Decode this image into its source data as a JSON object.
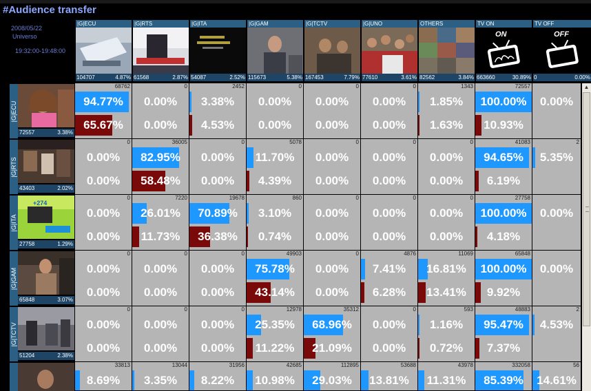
{
  "title": "#Audience transfer",
  "info": {
    "date": "2008/05/22",
    "universe": "Universo",
    "time": "19:32:00-19:48:00"
  },
  "channels": [
    {
      "name": "|G|ECU",
      "count": "104707",
      "pct": "4.87%"
    },
    {
      "name": "|G|RTS",
      "count": "61568",
      "pct": "2.87%"
    },
    {
      "name": "|G|ITA",
      "count": "54087",
      "pct": "2.52%"
    },
    {
      "name": "|G|GAM",
      "count": "115673",
      "pct": "5.38%"
    },
    {
      "name": "|G|TCTV",
      "count": "167453",
      "pct": "7.79%"
    },
    {
      "name": "|G|UNO",
      "count": "77610",
      "pct": "3.61%"
    },
    {
      "name": "OTHERS",
      "count": "82562",
      "pct": "3.84%"
    },
    {
      "name": "TV ON",
      "count": "663660",
      "pct": "30.89%"
    },
    {
      "name": "TV OFF",
      "count": "0",
      "pct": "0.00%"
    }
  ],
  "tv_on_icon_text": "ON",
  "tv_off_icon_text": "OFF",
  "rows": [
    {
      "name": "|G|ECU",
      "count": "72557",
      "pct": "3.38%",
      "cells": [
        {
          "cnt": "68762",
          "top": "94.77%",
          "bot": "65.67%",
          "t": 0.9477,
          "b": 0.6567
        },
        {
          "cnt": "0",
          "top": "0.00%",
          "bot": "0.00%",
          "t": 0,
          "b": 0
        },
        {
          "cnt": "2452",
          "top": "3.38%",
          "bot": "4.53%",
          "t": 0.0338,
          "b": 0.0453
        },
        {
          "cnt": "0",
          "top": "0.00%",
          "bot": "0.00%",
          "t": 0,
          "b": 0
        },
        {
          "cnt": "0",
          "top": "0.00%",
          "bot": "0.00%",
          "t": 0,
          "b": 0
        },
        {
          "cnt": "0",
          "top": "0.00%",
          "bot": "0.00%",
          "t": 0,
          "b": 0
        },
        {
          "cnt": "1343",
          "top": "1.85%",
          "bot": "1.63%",
          "t": 0.0185,
          "b": 0.0163
        },
        {
          "cnt": "72557",
          "top": "100.00%",
          "bot": "10.93%",
          "t": 1,
          "b": 0.1093
        },
        {
          "cnt": "",
          "top": "0.00%",
          "bot": "",
          "t": 0,
          "b": 0
        }
      ]
    },
    {
      "name": "|G|RTS",
      "count": "43403",
      "pct": "2.02%",
      "cells": [
        {
          "cnt": "0",
          "top": "0.00%",
          "bot": "0.00%",
          "t": 0,
          "b": 0
        },
        {
          "cnt": "36005",
          "top": "82.95%",
          "bot": "58.48%",
          "t": 0.8295,
          "b": 0.5848
        },
        {
          "cnt": "0",
          "top": "0.00%",
          "bot": "0.00%",
          "t": 0,
          "b": 0
        },
        {
          "cnt": "5078",
          "top": "11.70%",
          "bot": "4.39%",
          "t": 0.117,
          "b": 0.0439
        },
        {
          "cnt": "0",
          "top": "0.00%",
          "bot": "0.00%",
          "t": 0,
          "b": 0
        },
        {
          "cnt": "0",
          "top": "0.00%",
          "bot": "0.00%",
          "t": 0,
          "b": 0
        },
        {
          "cnt": "0",
          "top": "0.00%",
          "bot": "0.00%",
          "t": 0,
          "b": 0
        },
        {
          "cnt": "41083",
          "top": "94.65%",
          "bot": "6.19%",
          "t": 0.9465,
          "b": 0.0619
        },
        {
          "cnt": "2",
          "top": "5.35%",
          "bot": "",
          "t": 0.0535,
          "b": 0
        }
      ]
    },
    {
      "name": "|G|ITA",
      "count": "27758",
      "pct": "1.29%",
      "cells": [
        {
          "cnt": "0",
          "top": "0.00%",
          "bot": "0.00%",
          "t": 0,
          "b": 0
        },
        {
          "cnt": "7220",
          "top": "26.01%",
          "bot": "11.73%",
          "t": 0.2601,
          "b": 0.1173
        },
        {
          "cnt": "19678",
          "top": "70.89%",
          "bot": "36.38%",
          "t": 0.7089,
          "b": 0.3638
        },
        {
          "cnt": "860",
          "top": "3.10%",
          "bot": "0.74%",
          "t": 0.031,
          "b": 0.0074
        },
        {
          "cnt": "0",
          "top": "0.00%",
          "bot": "0.00%",
          "t": 0,
          "b": 0
        },
        {
          "cnt": "0",
          "top": "0.00%",
          "bot": "0.00%",
          "t": 0,
          "b": 0
        },
        {
          "cnt": "0",
          "top": "0.00%",
          "bot": "0.00%",
          "t": 0,
          "b": 0
        },
        {
          "cnt": "27758",
          "top": "100.00%",
          "bot": "4.18%",
          "t": 1,
          "b": 0.0418
        },
        {
          "cnt": "",
          "top": "0.00%",
          "bot": "",
          "t": 0,
          "b": 0
        }
      ]
    },
    {
      "name": "|G|GAM",
      "count": "65848",
      "pct": "3.07%",
      "cells": [
        {
          "cnt": "0",
          "top": "0.00%",
          "bot": "0.00%",
          "t": 0,
          "b": 0
        },
        {
          "cnt": "0",
          "top": "0.00%",
          "bot": "0.00%",
          "t": 0,
          "b": 0
        },
        {
          "cnt": "0",
          "top": "0.00%",
          "bot": "0.00%",
          "t": 0,
          "b": 0
        },
        {
          "cnt": "49903",
          "top": "75.78%",
          "bot": "43.14%",
          "t": 0.7578,
          "b": 0.4314
        },
        {
          "cnt": "0",
          "top": "0.00%",
          "bot": "0.00%",
          "t": 0,
          "b": 0
        },
        {
          "cnt": "4876",
          "top": "7.41%",
          "bot": "6.28%",
          "t": 0.0741,
          "b": 0.0628
        },
        {
          "cnt": "11069",
          "top": "16.81%",
          "bot": "13.41%",
          "t": 0.1681,
          "b": 0.1341
        },
        {
          "cnt": "65848",
          "top": "100.00%",
          "bot": "9.92%",
          "t": 1,
          "b": 0.0992
        },
        {
          "cnt": "",
          "top": "0.00%",
          "bot": "",
          "t": 0,
          "b": 0
        }
      ]
    },
    {
      "name": "|G|TCTV",
      "count": "51204",
      "pct": "2.38%",
      "cells": [
        {
          "cnt": "0",
          "top": "0.00%",
          "bot": "0.00%",
          "t": 0,
          "b": 0
        },
        {
          "cnt": "0",
          "top": "0.00%",
          "bot": "0.00%",
          "t": 0,
          "b": 0
        },
        {
          "cnt": "0",
          "top": "0.00%",
          "bot": "0.00%",
          "t": 0,
          "b": 0
        },
        {
          "cnt": "12978",
          "top": "25.35%",
          "bot": "11.22%",
          "t": 0.2535,
          "b": 0.1122
        },
        {
          "cnt": "35312",
          "top": "68.96%",
          "bot": "21.09%",
          "t": 0.6896,
          "b": 0.2109
        },
        {
          "cnt": "0",
          "top": "0.00%",
          "bot": "0.00%",
          "t": 0,
          "b": 0
        },
        {
          "cnt": "593",
          "top": "1.16%",
          "bot": "0.72%",
          "t": 0.0116,
          "b": 0.0072
        },
        {
          "cnt": "48883",
          "top": "95.47%",
          "bot": "7.37%",
          "t": 0.9547,
          "b": 0.0737
        },
        {
          "cnt": "2",
          "top": "4.53%",
          "bot": "",
          "t": 0.0453,
          "b": 0
        }
      ]
    },
    {
      "name": "",
      "count": "",
      "pct": "",
      "cells": [
        {
          "cnt": "33813",
          "top": "8.69%",
          "bot": "",
          "t": 0.0869,
          "b": 0
        },
        {
          "cnt": "13044",
          "top": "3.35%",
          "bot": "",
          "t": 0.0335,
          "b": 0
        },
        {
          "cnt": "31956",
          "top": "8.22%",
          "bot": "",
          "t": 0.0822,
          "b": 0
        },
        {
          "cnt": "42685",
          "top": "10.98%",
          "bot": "",
          "t": 0.1098,
          "b": 0
        },
        {
          "cnt": "112895",
          "top": "29.03%",
          "bot": "",
          "t": 0.2903,
          "b": 0
        },
        {
          "cnt": "53688",
          "top": "13.81%",
          "bot": "",
          "t": 0.1381,
          "b": 0
        },
        {
          "cnt": "43978",
          "top": "11.31%",
          "bot": "",
          "t": 0.1131,
          "b": 0
        },
        {
          "cnt": "332058",
          "top": "85.39%",
          "bot": "",
          "t": 0.8539,
          "b": 0
        },
        {
          "cnt": "56",
          "top": "14.61%",
          "bot": "",
          "t": 0.1461,
          "b": 0
        }
      ]
    }
  ],
  "colors": {
    "bar_blue": "#1e98ff",
    "bar_red": "#7a0a0a",
    "cell_bg": "#b5b5b5",
    "header_blue": "#2b5f83"
  },
  "scroll_up_icon": "triangle-up-icon"
}
